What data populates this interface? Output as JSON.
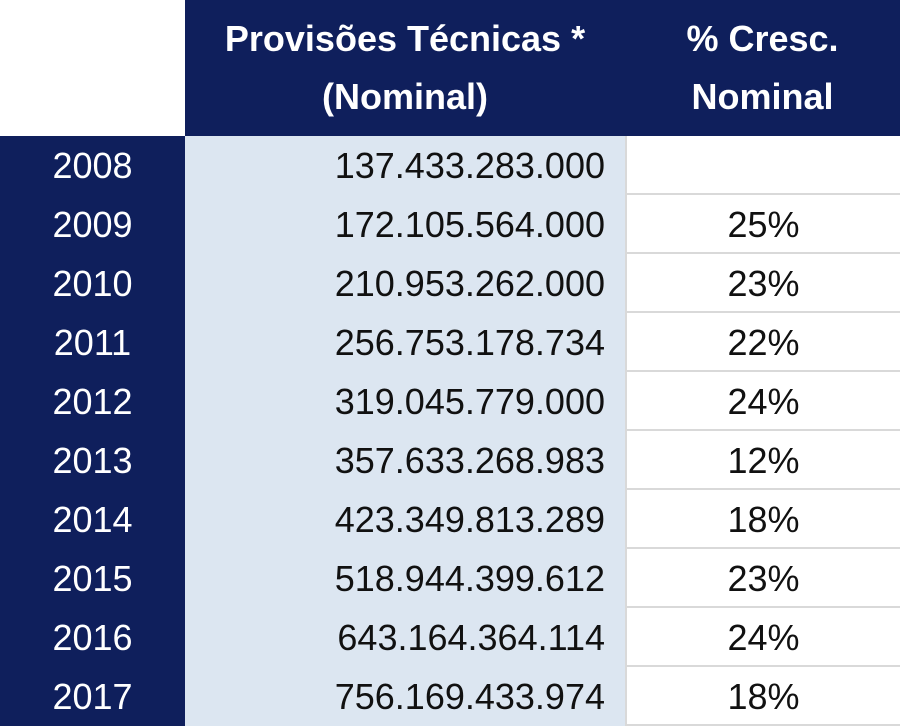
{
  "chart_data": {
    "type": "table",
    "columns": [
      "",
      "Provisões Técnicas * (Nominal)",
      "% Cresc. Nominal"
    ],
    "header": {
      "provisoes_line1": "Provisões Técnicas *",
      "provisoes_line2": "(Nominal)",
      "pct_line1": "% Cresc.",
      "pct_line2": "Nominal"
    },
    "rows": [
      {
        "year": "2008",
        "value": "137.433.283.000",
        "pct": ""
      },
      {
        "year": "2009",
        "value": "172.105.564.000",
        "pct": "25%"
      },
      {
        "year": "2010",
        "value": "210.953.262.000",
        "pct": "23%"
      },
      {
        "year": "2011",
        "value": "256.753.178.734",
        "pct": "22%"
      },
      {
        "year": "2012",
        "value": "319.045.779.000",
        "pct": "24%"
      },
      {
        "year": "2013",
        "value": "357.633.268.983",
        "pct": "12%"
      },
      {
        "year": "2014",
        "value": "423.349.813.289",
        "pct": "18%"
      },
      {
        "year": "2015",
        "value": "518.944.399.612",
        "pct": "23%"
      },
      {
        "year": "2016",
        "value": "643.164.364.114",
        "pct": "24%"
      },
      {
        "year": "2017",
        "value": "756.169.433.974",
        "pct": "18%"
      }
    ]
  }
}
